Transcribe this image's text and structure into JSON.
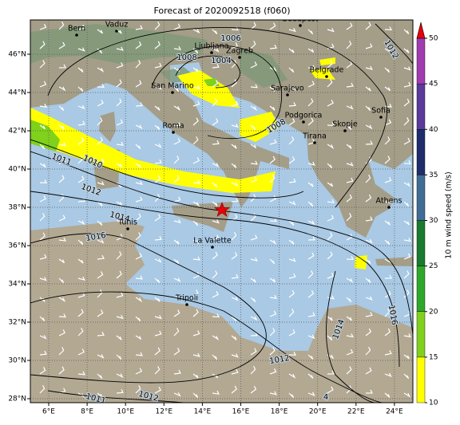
{
  "title": "Forecast of 2020092518 (f060)",
  "map": {
    "lon_labels": [
      "6°E",
      "8°E",
      "10°E",
      "12°E",
      "14°E",
      "16°E",
      "18°E",
      "20°E",
      "22°E",
      "24°E"
    ],
    "lat_labels": [
      "28°N",
      "30°N",
      "32°N",
      "34°N",
      "36°N",
      "38°N",
      "40°N",
      "42°N",
      "44°N",
      "46°N"
    ],
    "cities": [
      "Bern",
      "Vaduz",
      "Budapest",
      "Ljubljana",
      "Zagreb",
      "San Marino",
      "Belgrade",
      "Sarajevo",
      "Roma",
      "Podgorica",
      "Sofia",
      "Skopje",
      "Tirana",
      "Tunis",
      "La Valette",
      "Athens",
      "Tripoli"
    ],
    "isobar_labels": [
      "1006",
      "1008",
      "1004",
      "1008",
      "1011",
      "1010",
      "1012",
      "1014",
      "1016",
      "1012",
      "1014",
      "1016",
      "1012",
      "1011",
      "1012",
      "4"
    ]
  },
  "colorbar": {
    "label": "10 m wind speed (m/s)",
    "ticks": [
      10,
      15,
      20,
      25,
      30,
      35,
      40,
      45,
      50
    ],
    "colors": [
      "#ffff00",
      "#7fd11b",
      "#2ea82a",
      "#1a7a2e",
      "#3f6d95",
      "#1f2d6b",
      "#5a3a9a",
      "#a03bb0"
    ],
    "extend_color": "#e8000b"
  }
}
